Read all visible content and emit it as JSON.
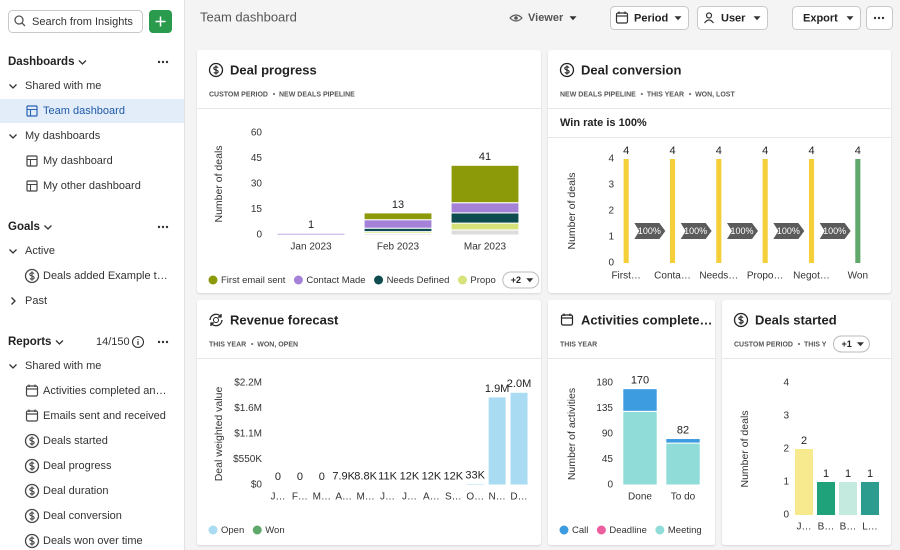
{
  "sidebar": {
    "search_placeholder": "Search from Insights",
    "sections": [
      {
        "title": "Dashboards",
        "groups": [
          {
            "label": "Shared with me",
            "items": [
              "Team dashboard"
            ]
          },
          {
            "label": "My dashboards",
            "items": [
              "My dashboard",
              "My other dashboard"
            ]
          }
        ]
      },
      {
        "title": "Goals",
        "groups": [
          {
            "label": "Active",
            "items": [
              "Deals added Example t…"
            ]
          },
          {
            "label": "Past",
            "collapsed": true,
            "items": []
          }
        ]
      },
      {
        "title": "Reports",
        "count": "14/150",
        "groups": [
          {
            "label": "Shared with me",
            "items": [
              "Activities completed an…",
              "Emails sent and received",
              "Deals started",
              "Deal progress",
              "Deal duration",
              "Deal conversion",
              "Deals won over time"
            ]
          }
        ]
      }
    ]
  },
  "topbar": {
    "title": "Team dashboard",
    "viewer": "Viewer",
    "period": "Period",
    "user": "User",
    "export": "Export"
  },
  "chart_data": [
    {
      "type": "bar",
      "stacked": true,
      "title": "Deal progress",
      "tags": [
        "CUSTOM PERIOD",
        "NEW DEALS PIPELINE"
      ],
      "y_label": "Number of deals",
      "categories": [
        "Jan 2023",
        "Feb 2023",
        "Mar 2023"
      ],
      "series": [
        {
          "name": "First email sent",
          "color": "#8c9a0a",
          "values": [
            0,
            4,
            22
          ]
        },
        {
          "name": "Contact Made",
          "color": "#a582d8",
          "values": [
            1,
            5,
            6
          ]
        },
        {
          "name": "Needs Defined",
          "color": "#0e4c50",
          "values": [
            0,
            2,
            6
          ]
        },
        {
          "name": "Propo",
          "color": "#d7e27a",
          "values": [
            0,
            1,
            4
          ]
        },
        {
          "color": "#dcdcdc",
          "values": [
            0,
            1,
            3
          ]
        }
      ],
      "totals": [
        1,
        13,
        41
      ],
      "ylim": [
        0,
        60
      ],
      "yticks": [
        0,
        15,
        30,
        45,
        60
      ],
      "legend_more": "+2"
    },
    {
      "type": "bar",
      "title": "Deal conversion",
      "tags": [
        "NEW DEALS PIPELINE",
        "THIS YEAR",
        "WON, LOST"
      ],
      "subtitle": "Win rate is 100%",
      "y_label": "Number of deals",
      "categories": [
        "First…",
        "Conta…",
        "Needs…",
        "Propo…",
        "Negot…",
        "Won"
      ],
      "values": [
        4,
        4,
        4,
        4,
        4,
        4
      ],
      "colors": [
        "#f5cf3a",
        "#f5cf3a",
        "#f5cf3a",
        "#f5cf3a",
        "#f5cf3a",
        "#5fa86a"
      ],
      "conversion_labels": [
        "100%",
        "100%",
        "100%",
        "100%",
        "100%"
      ],
      "ylim": [
        0,
        4
      ],
      "yticks": [
        0,
        1,
        2,
        3,
        4
      ]
    },
    {
      "type": "bar",
      "stacked": true,
      "title": "Revenue forecast",
      "tags": [
        "THIS YEAR",
        "WON, OPEN"
      ],
      "y_label": "Deal weighted value",
      "categories": [
        "J…",
        "F…",
        "M…",
        "A…",
        "M…",
        "J…",
        "J…",
        "A…",
        "S…",
        "O…",
        "N…",
        "D…"
      ],
      "series": [
        {
          "name": "Open",
          "color": "#a9dcf3",
          "values": [
            0,
            0,
            0,
            7900,
            8800,
            11000,
            12000,
            12000,
            12000,
            33000,
            1900000,
            2000000
          ],
          "value_labels": [
            "0",
            "0",
            "0",
            "7.9K",
            "8.8K",
            "11K",
            "12K",
            "12K",
            "12K",
            "33K",
            "1.9M",
            "2.0M"
          ]
        },
        {
          "name": "Won",
          "color": "#5fa86a",
          "values": [
            0,
            0,
            0,
            0,
            0,
            0,
            0,
            0,
            0,
            0,
            0,
            0
          ]
        }
      ],
      "ylim": [
        0,
        2200000
      ],
      "yticks": [
        {
          "value": 0,
          "label": "$0"
        },
        {
          "value": 550000,
          "label": "$550K"
        },
        {
          "value": 1100000,
          "label": "$1.1M"
        },
        {
          "value": 1650000,
          "label": "$1.6M"
        },
        {
          "value": 2200000,
          "label": "$2.2M"
        }
      ]
    },
    {
      "type": "bar",
      "stacked": true,
      "title": "Activities complete…",
      "tags": [
        "THIS YEAR"
      ],
      "y_label": "Number of activities",
      "categories": [
        "Done",
        "To do"
      ],
      "series": [
        {
          "name": "Call",
          "color": "#3d9be0",
          "values": [
            40,
            8
          ]
        },
        {
          "name": "Deadline",
          "color": "#ec5f9f",
          "values": [
            0,
            0
          ]
        },
        {
          "name": "Meeting",
          "color": "#8fdcd9",
          "values": [
            130,
            74
          ]
        }
      ],
      "totals": [
        170,
        82
      ],
      "ylim": [
        0,
        180
      ],
      "yticks": [
        0,
        45,
        90,
        135,
        180
      ]
    },
    {
      "type": "bar",
      "title": "Deals started",
      "tags": [
        "CUSTOM PERIOD",
        "THIS Y"
      ],
      "tags_more": "+1",
      "y_label": "Number of deals",
      "categories": [
        "J…",
        "B…",
        "B…",
        "L…"
      ],
      "values": [
        2,
        1,
        1,
        1
      ],
      "colors": [
        "#f7e98e",
        "#1fa27a",
        "#c4eadf",
        "#2b9c8d"
      ],
      "ylim": [
        0,
        4
      ],
      "yticks": [
        0,
        1,
        2,
        3,
        4
      ]
    }
  ]
}
